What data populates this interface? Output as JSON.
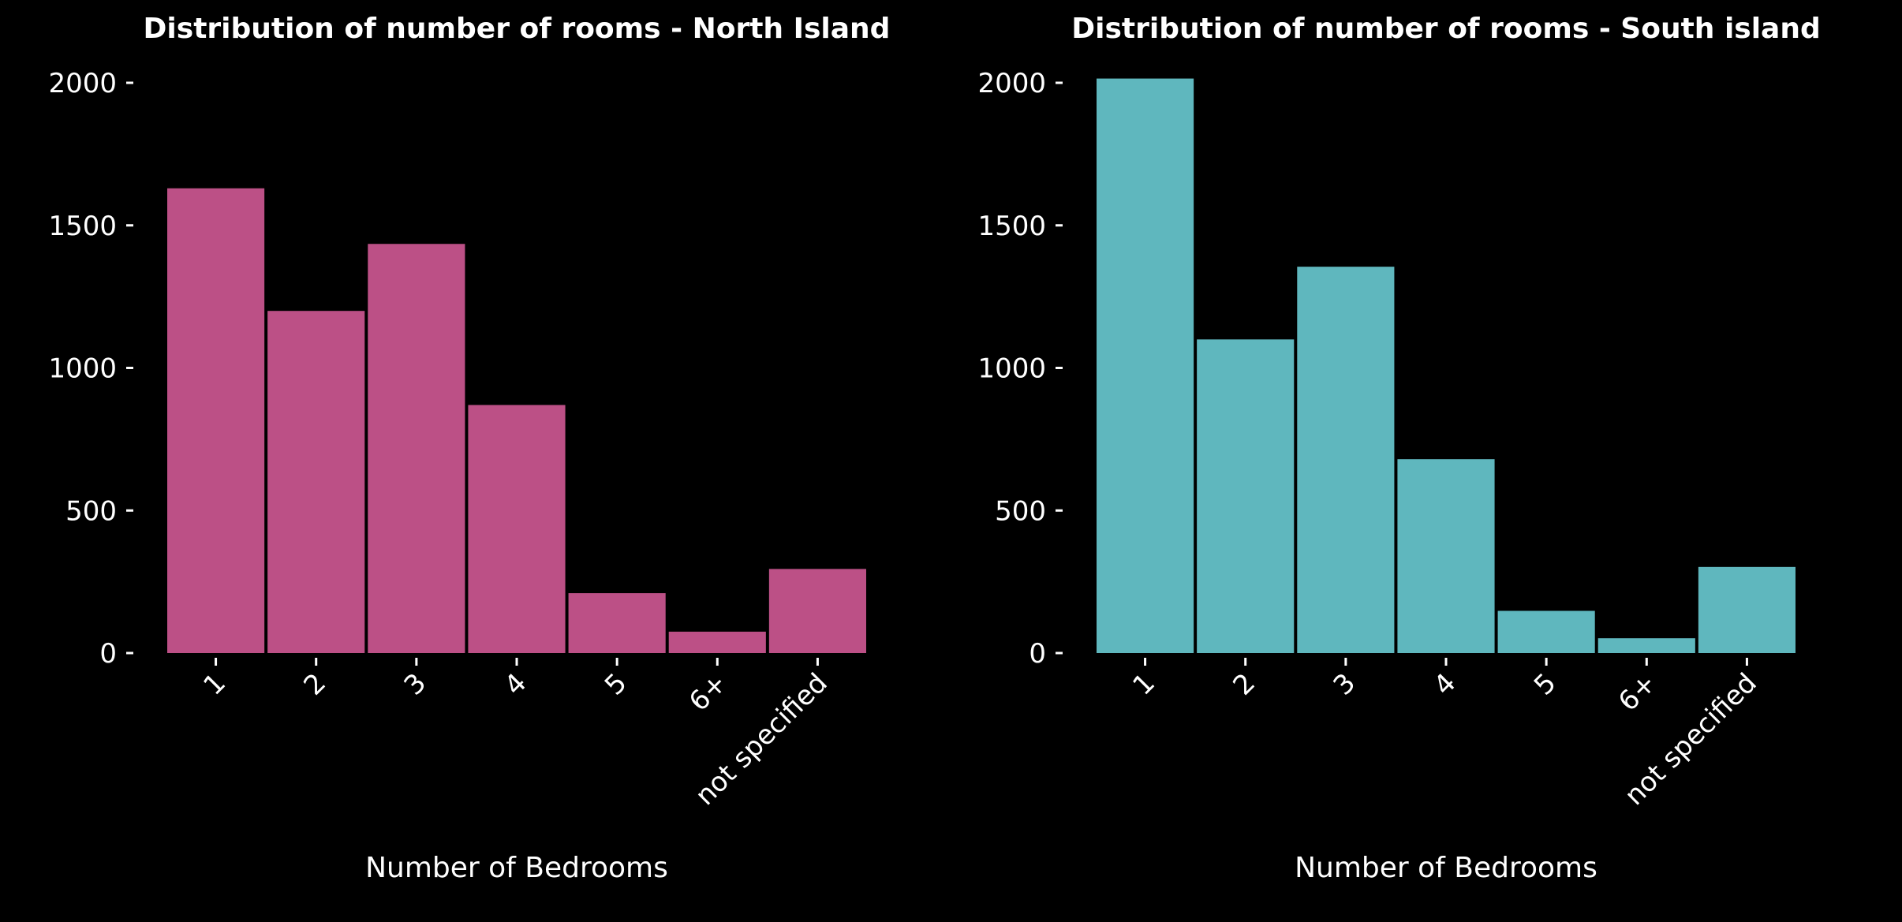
{
  "chart_data": [
    {
      "type": "bar",
      "title": "Distribution of number of rooms - North Island",
      "xlabel": "Number of Bedrooms",
      "ylabel": "",
      "categories": [
        "1",
        "2",
        "3",
        "4",
        "5",
        "6+",
        "not specified"
      ],
      "values": [
        1630,
        1200,
        1435,
        870,
        210,
        75,
        295
      ],
      "ylim": [
        0,
        2000
      ],
      "yticks": [
        "0",
        "500",
        "1000",
        "1500",
        "2000"
      ],
      "grid": false,
      "color": "#bc5086"
    },
    {
      "type": "bar",
      "title": "Distribution of number of rooms - South island",
      "xlabel": "Number of Bedrooms",
      "ylabel": "",
      "categories": [
        "1",
        "2",
        "3",
        "4",
        "5",
        "6+",
        "not specified"
      ],
      "values": [
        2015,
        1100,
        1355,
        680,
        148,
        52,
        302
      ],
      "ylim": [
        0,
        2000
      ],
      "yticks": [
        "0",
        "500",
        "1000",
        "1500",
        "2000"
      ],
      "grid": false,
      "color": "#5fb7be"
    }
  ],
  "background": "#000000",
  "text_color": "#ffffff"
}
